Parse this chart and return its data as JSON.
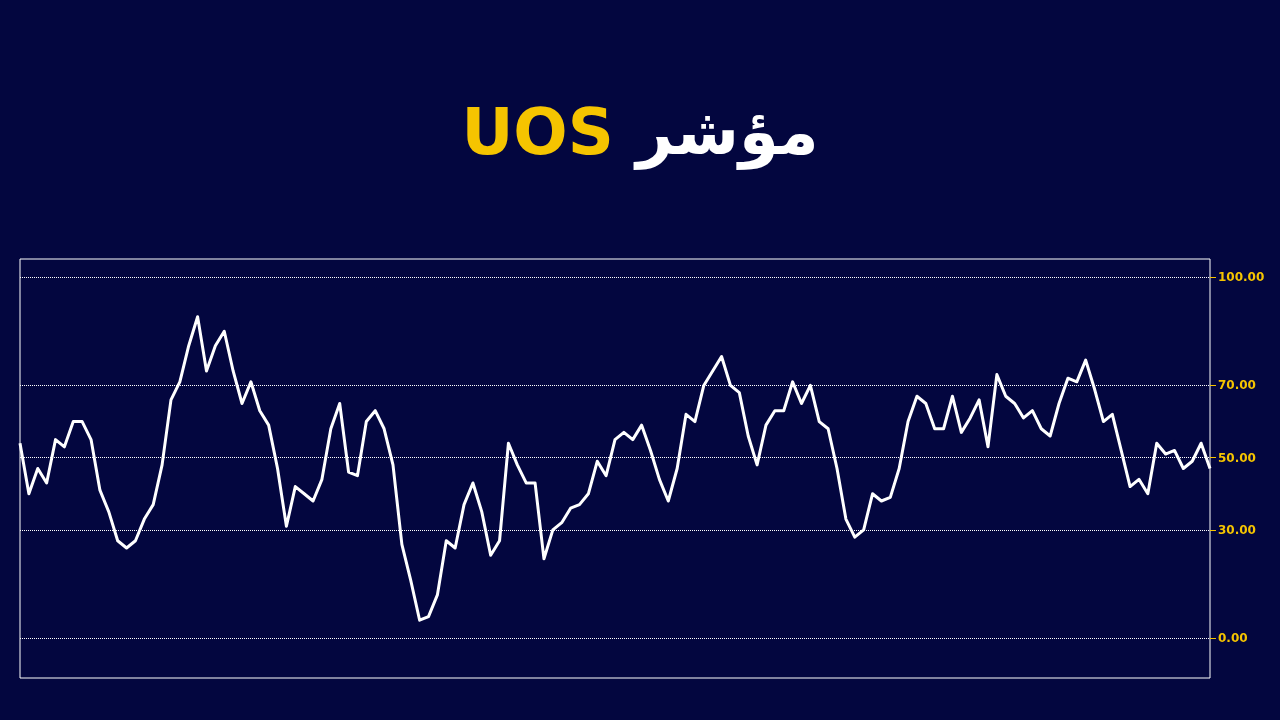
{
  "chart_data": {
    "type": "line",
    "title": "مؤشر UOS",
    "categories": [
      null,
      null,
      null,
      null,
      null,
      null,
      null,
      null,
      null,
      null,
      null,
      null,
      null,
      null,
      null,
      null,
      null,
      null,
      null,
      null,
      null,
      null,
      null,
      null,
      null,
      null,
      null,
      null,
      null,
      null,
      null,
      null,
      null,
      null,
      null,
      null,
      null,
      null,
      null,
      null,
      null,
      null,
      null,
      null,
      null,
      null,
      null,
      null,
      null,
      null,
      null,
      null,
      null,
      null,
      null,
      null,
      null,
      null,
      null,
      null,
      null,
      null,
      null,
      null,
      null,
      null,
      null,
      null,
      null,
      null,
      null,
      null,
      null,
      null,
      null,
      null,
      null,
      null,
      null,
      null,
      null,
      null,
      null,
      null,
      null,
      null,
      null,
      null,
      null,
      null,
      null,
      null,
      null,
      null,
      null,
      null,
      null,
      null,
      null,
      null,
      null,
      null,
      null,
      null,
      null,
      null,
      null,
      null,
      null,
      null,
      null,
      null,
      null,
      null,
      null,
      null,
      null,
      null,
      null,
      null,
      null,
      null,
      null,
      null,
      null,
      null,
      null,
      null,
      null,
      null,
      null,
      null,
      null,
      null,
      null
    ],
    "series": [
      {
        "color": "#ffffff",
        "values": [
          54,
          40,
          47,
          43,
          55,
          53,
          60,
          60,
          55,
          41,
          35,
          27,
          25,
          27,
          33,
          37,
          48,
          66,
          71,
          81,
          89,
          74,
          81,
          85,
          74,
          65,
          71,
          63,
          59,
          47,
          31,
          42,
          40,
          38,
          44,
          58,
          65,
          46,
          45,
          60,
          63,
          58,
          48,
          26,
          16,
          5,
          6,
          12,
          27,
          25,
          37,
          43,
          35,
          23,
          27,
          54,
          48,
          43,
          43,
          22,
          30,
          32,
          36,
          37,
          40,
          49,
          45,
          55,
          57,
          55,
          59,
          52,
          44,
          38,
          47,
          62,
          60,
          70,
          74,
          78,
          70,
          68,
          56,
          48,
          59,
          63,
          63,
          71,
          65,
          70,
          60,
          58,
          47,
          33,
          28,
          30,
          40,
          38,
          39,
          47,
          60,
          67,
          65,
          58,
          58,
          67,
          57,
          61,
          66,
          53,
          73,
          67,
          65,
          61,
          63,
          58,
          56,
          65,
          72,
          71,
          77,
          69,
          60,
          62,
          52,
          42,
          44,
          40,
          54,
          51,
          52,
          47,
          49,
          54,
          47
        ]
      }
    ],
    "ylim": [
      -11,
      105
    ],
    "yticks": [
      {
        "value": 0,
        "label": "0.00"
      },
      {
        "value": 30,
        "label": "30.00"
      },
      {
        "value": 50,
        "label": "50.00"
      },
      {
        "value": 70,
        "label": "70.00"
      },
      {
        "value": 100,
        "label": "100.00"
      }
    ],
    "grid": "y",
    "line_style": "solid",
    "tick_labels": "y"
  }
}
